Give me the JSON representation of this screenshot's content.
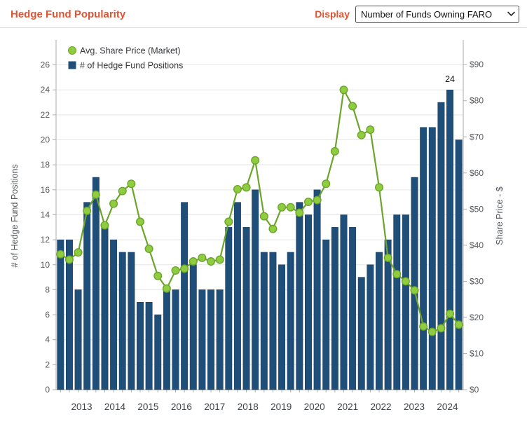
{
  "header": {
    "title": "Hedge Fund Popularity",
    "display_label": "Display",
    "display_options": [
      "Number of Funds Owning FARO"
    ]
  },
  "chart_data": {
    "type": "combo-bar-line",
    "categories": [
      "2013 Q1",
      "2013 Q2",
      "2013 Q3",
      "2013 Q4",
      "2014 Q1",
      "2014 Q2",
      "2014 Q3",
      "2014 Q4",
      "2015 Q1",
      "2015 Q2",
      "2015 Q3",
      "2015 Q4",
      "2016 Q1",
      "2016 Q2",
      "2016 Q3",
      "2016 Q4",
      "2017 Q1",
      "2017 Q2",
      "2017 Q3",
      "2017 Q4",
      "2018 Q1",
      "2018 Q2",
      "2018 Q3",
      "2018 Q4",
      "2019 Q1",
      "2019 Q2",
      "2019 Q3",
      "2019 Q4",
      "2020 Q1",
      "2020 Q2",
      "2020 Q3",
      "2020 Q4",
      "2021 Q1",
      "2021 Q2",
      "2021 Q3",
      "2021 Q4",
      "2022 Q1",
      "2022 Q2",
      "2022 Q3",
      "2022 Q4",
      "2023 Q1",
      "2023 Q2",
      "2023 Q3",
      "2023 Q4",
      "2024 Q1",
      "2024 Q2"
    ],
    "series": [
      {
        "name": "# of Hedge Fund Positions",
        "type": "bar",
        "axis": "left",
        "color": "#1F4E79",
        "values": [
          12,
          12,
          8,
          15,
          17,
          13,
          12,
          11,
          11,
          7,
          7,
          6,
          8,
          8,
          15,
          10,
          8,
          8,
          8,
          13,
          15,
          13,
          16,
          11,
          11,
          10,
          11,
          15,
          14,
          16,
          12,
          13,
          14,
          13,
          9,
          10,
          11,
          12,
          14,
          14,
          17,
          21,
          21,
          23,
          24,
          20
        ]
      },
      {
        "name": "Avg. Share Price (Market)",
        "type": "line",
        "axis": "right",
        "marker_color": "#8FCC3F",
        "line_color": "#6BA52B",
        "values": [
          37.5,
          36,
          38,
          49.5,
          54,
          45.5,
          51.5,
          55,
          57,
          46.5,
          39,
          31.5,
          28,
          33,
          33.5,
          35.5,
          36.5,
          35.5,
          36,
          46.5,
          55.5,
          56,
          63.5,
          48,
          44.5,
          50.5,
          50.5,
          49,
          52,
          52.5,
          57,
          66,
          83,
          78.5,
          70.5,
          72,
          56,
          36.5,
          32,
          30,
          27.5,
          17.5,
          16,
          17,
          21,
          18
        ]
      }
    ],
    "left_axis": {
      "label": "# of Hedge Fund Positions",
      "min": 0,
      "max": 26,
      "tick_step": 2
    },
    "right_axis": {
      "label": "Share Price - $",
      "min": 0,
      "max": 90,
      "tick_step": 10,
      "tick_prefix": "$"
    },
    "x_axis": {
      "year_labels": [
        "2013",
        "2014",
        "2015",
        "2016",
        "2017",
        "2018",
        "2019",
        "2020",
        "2021",
        "2022",
        "2023",
        "2024"
      ]
    },
    "legend": [
      {
        "label": "Avg. Share Price (Market)",
        "marker": "circle",
        "color": "#8FCC3F"
      },
      {
        "label": "# of Hedge Fund Positions",
        "marker": "square",
        "color": "#1F4E79"
      }
    ],
    "annotations": [
      {
        "text": "24",
        "point_index": 44
      }
    ],
    "grid": true,
    "legend_position": "top-left"
  }
}
